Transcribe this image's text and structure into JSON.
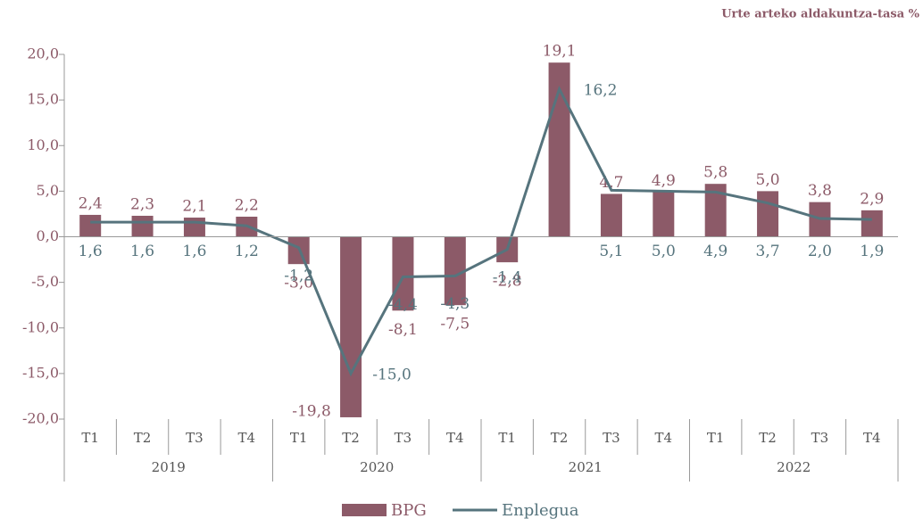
{
  "chart_data": {
    "type": "bar-line",
    "unit_label": "Urte arteko aldakuntza-tasa %",
    "categories": [
      "T1",
      "T2",
      "T3",
      "T4",
      "T1",
      "T2",
      "T3",
      "T4",
      "T1",
      "T2",
      "T3",
      "T4",
      "T1",
      "T2",
      "T3",
      "T4"
    ],
    "category_groups": [
      "2019",
      "2020",
      "2021",
      "2022"
    ],
    "ylim": [
      -20,
      20
    ],
    "yticks": [
      {
        "value": -20,
        "label": "-20,0"
      },
      {
        "value": -15,
        "label": "-15,0"
      },
      {
        "value": -10,
        "label": "-10,0"
      },
      {
        "value": -5,
        "label": "-5,0"
      },
      {
        "value": 0,
        "label": "0,0"
      },
      {
        "value": 5,
        "label": "5,0"
      },
      {
        "value": 10,
        "label": "10,0"
      },
      {
        "value": 15,
        "label": "15,0"
      },
      {
        "value": 20,
        "label": "20,0"
      }
    ],
    "series": [
      {
        "name": "BPG",
        "type": "bar",
        "color": "#8c5a68",
        "values": [
          2.4,
          2.3,
          2.1,
          2.2,
          -3.0,
          -19.8,
          -8.1,
          -7.5,
          -2.8,
          19.1,
          4.7,
          4.9,
          5.8,
          5.0,
          3.8,
          2.9
        ],
        "value_labels": [
          "2,4",
          "2,3",
          "2,1",
          "2,2",
          "-3,0",
          "-19,8",
          "-8,1",
          "-7,5",
          "-2,8",
          "19,1",
          "4,7",
          "4,9",
          "5,8",
          "5,0",
          "3,8",
          "2,9"
        ]
      },
      {
        "name": "Enplegua",
        "type": "line",
        "color": "#56747d",
        "values": [
          1.6,
          1.6,
          1.6,
          1.2,
          -1.2,
          -15.0,
          -4.4,
          -4.3,
          -1.4,
          16.2,
          5.1,
          5.0,
          4.9,
          3.7,
          2.0,
          1.9
        ],
        "value_labels": [
          "1,6",
          "1,6",
          "1,6",
          "1,2",
          "-1,2",
          "-15,0",
          "-4,4",
          "-4,3",
          "-1,4",
          "16,2",
          "5,1",
          "5,0",
          "4,9",
          "3,7",
          "2,0",
          "1,9"
        ]
      }
    ]
  }
}
